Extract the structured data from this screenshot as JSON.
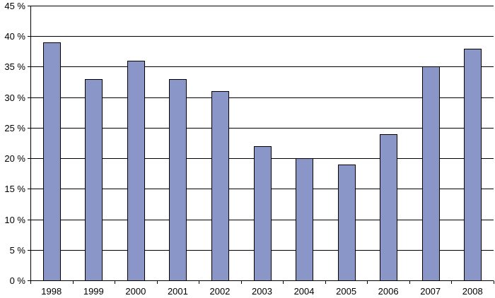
{
  "chart_data": {
    "type": "bar",
    "title": "",
    "xlabel": "",
    "ylabel": "",
    "categories": [
      "1998",
      "1999",
      "2000",
      "2001",
      "2002",
      "2003",
      "2004",
      "2005",
      "2006",
      "2007",
      "2008"
    ],
    "values": [
      39,
      33,
      36,
      33,
      31,
      22,
      20,
      19,
      24,
      35,
      38
    ],
    "ylim": [
      0,
      45
    ],
    "y_ticks": [
      0,
      5,
      10,
      15,
      20,
      25,
      30,
      35,
      40,
      45
    ],
    "y_tick_labels": [
      "0 %",
      "5 %",
      "10 %",
      "15 %",
      "20 %",
      "25 %",
      "30 %",
      "35 %",
      "40 %",
      "45 %"
    ],
    "grid": true,
    "legend": "none",
    "bar_color": "#8b96c8",
    "grid_color": "#000000"
  }
}
